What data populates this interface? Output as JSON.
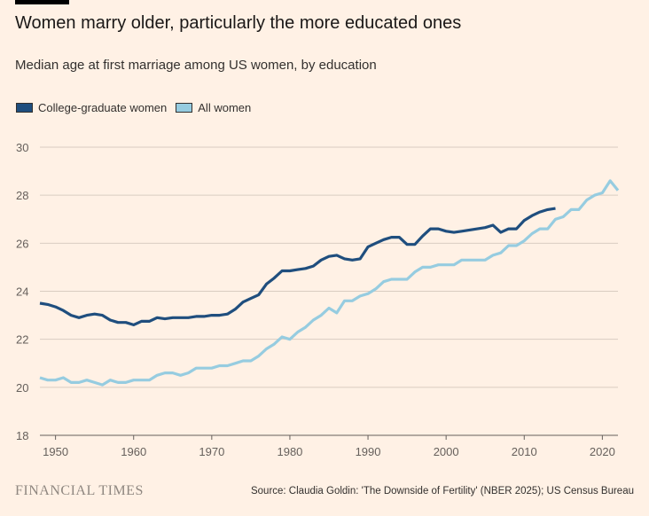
{
  "title": "Women marry older, particularly the more educated ones",
  "subtitle": "Median age at first marriage among US women, by education",
  "brand": "FINANCIAL TIMES",
  "source": "Source: Claudia Goldin: 'The Downside of Fertility' (NBER 2025); US Census Bureau",
  "chart_data": {
    "type": "line",
    "title": "Women marry older, particularly the more educated ones",
    "subtitle": "Median age at first marriage among US women, by education",
    "xlim": [
      1948,
      2022
    ],
    "ylim": [
      18,
      30
    ],
    "xticks": [
      1950,
      1960,
      1970,
      1980,
      1990,
      2000,
      2010,
      2020
    ],
    "yticks": [
      18,
      20,
      22,
      24,
      26,
      28,
      30
    ],
    "grid": "horizontal",
    "legend": "top-left",
    "series": [
      {
        "name": "College-graduate women",
        "color": "#1F4E7E",
        "x_start": 1948,
        "values": [
          23.5,
          23.45,
          23.35,
          23.2,
          23.0,
          22.9,
          23.0,
          23.05,
          23.0,
          22.8,
          22.7,
          22.7,
          22.6,
          22.75,
          22.75,
          22.9,
          22.85,
          22.9,
          22.9,
          22.9,
          22.95,
          22.95,
          23.0,
          23.0,
          23.05,
          23.25,
          23.55,
          23.7,
          23.85,
          24.3,
          24.55,
          24.85,
          24.85,
          24.9,
          24.95,
          25.05,
          25.3,
          25.45,
          25.5,
          25.35,
          25.3,
          25.35,
          25.85,
          26.0,
          26.15,
          26.25,
          26.25,
          25.95,
          25.95,
          26.3,
          26.6,
          26.6,
          26.5,
          26.45,
          26.5,
          26.55,
          26.6,
          26.65,
          26.75,
          26.45,
          26.6,
          26.6,
          26.95,
          27.15,
          27.3,
          27.4,
          27.45
        ]
      },
      {
        "name": "All women",
        "color": "#96CCE0",
        "x_start": 1948,
        "values": [
          20.4,
          20.3,
          20.3,
          20.4,
          20.2,
          20.2,
          20.3,
          20.2,
          20.1,
          20.3,
          20.2,
          20.2,
          20.3,
          20.3,
          20.3,
          20.5,
          20.6,
          20.6,
          20.5,
          20.6,
          20.8,
          20.8,
          20.8,
          20.9,
          20.9,
          21.0,
          21.1,
          21.1,
          21.3,
          21.6,
          21.8,
          22.1,
          22.0,
          22.3,
          22.5,
          22.8,
          23.0,
          23.3,
          23.1,
          23.6,
          23.6,
          23.8,
          23.9,
          24.1,
          24.4,
          24.5,
          24.5,
          24.5,
          24.8,
          25.0,
          25.0,
          25.1,
          25.1,
          25.1,
          25.3,
          25.3,
          25.3,
          25.3,
          25.5,
          25.6,
          25.9,
          25.9,
          26.1,
          26.4,
          26.6,
          26.6,
          27.0,
          27.1,
          27.4,
          27.4,
          27.8,
          28.0,
          28.1,
          28.6,
          28.2
        ]
      }
    ]
  }
}
